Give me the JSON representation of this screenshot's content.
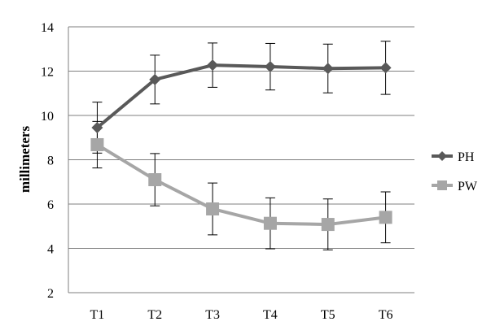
{
  "chart_data": {
    "type": "line",
    "title": "",
    "xlabel": "",
    "ylabel": "millimeters",
    "categories": [
      "T1",
      "T2",
      "T3",
      "T4",
      "T5",
      "T6"
    ],
    "ylim": [
      2,
      14
    ],
    "yticks": [
      2,
      4,
      6,
      8,
      10,
      12,
      14
    ],
    "grid": true,
    "legend_position": "right",
    "series": [
      {
        "name": "PH",
        "marker": "diamond",
        "color": "#595959",
        "values": [
          9.45,
          11.62,
          12.27,
          12.2,
          12.12,
          12.15
        ],
        "error": [
          1.15,
          1.1,
          1.0,
          1.05,
          1.1,
          1.2
        ]
      },
      {
        "name": "PW",
        "marker": "square",
        "color": "#a6a6a6",
        "values": [
          8.68,
          7.1,
          5.78,
          5.13,
          5.08,
          5.4
        ],
        "error": [
          1.05,
          1.18,
          1.17,
          1.15,
          1.15,
          1.15
        ]
      }
    ]
  }
}
